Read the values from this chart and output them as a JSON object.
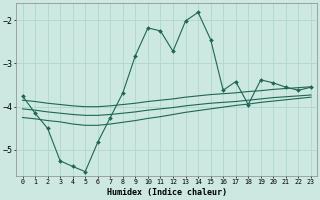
{
  "xlabel": "Humidex (Indice chaleur)",
  "bg_color": "#cce8e0",
  "grid_color": "#b0d8cc",
  "line_color": "#1e6655",
  "xlim": [
    -0.5,
    23.5
  ],
  "ylim": [
    -5.6,
    -1.6
  ],
  "yticks": [
    -5,
    -4,
    -3,
    -2
  ],
  "xtick_labels": [
    "0",
    "1",
    "2",
    "3",
    "4",
    "5",
    "6",
    "7",
    "8",
    "9",
    "10",
    "11",
    "12",
    "13",
    "14",
    "15",
    "16",
    "17",
    "18",
    "19",
    "20",
    "21",
    "22",
    "23"
  ],
  "series": [
    {
      "x": [
        0,
        1,
        2,
        3,
        4,
        5,
        6,
        7,
        8,
        9,
        10,
        11,
        12,
        13,
        14,
        15,
        16,
        17,
        18,
        19,
        20,
        21,
        22,
        23
      ],
      "y": [
        -3.85,
        -3.88,
        -3.92,
        -3.95,
        -3.98,
        -4.0,
        -4.0,
        -3.98,
        -3.95,
        -3.92,
        -3.88,
        -3.85,
        -3.82,
        -3.78,
        -3.75,
        -3.72,
        -3.7,
        -3.68,
        -3.65,
        -3.63,
        -3.6,
        -3.58,
        -3.56,
        -3.54
      ],
      "has_markers": false
    },
    {
      "x": [
        0,
        1,
        2,
        3,
        4,
        5,
        6,
        7,
        8,
        9,
        10,
        11,
        12,
        13,
        14,
        15,
        16,
        17,
        18,
        19,
        20,
        21,
        22,
        23
      ],
      "y": [
        -4.05,
        -4.08,
        -4.12,
        -4.15,
        -4.18,
        -4.2,
        -4.2,
        -4.18,
        -4.15,
        -4.12,
        -4.08,
        -4.05,
        -4.02,
        -3.98,
        -3.95,
        -3.92,
        -3.9,
        -3.88,
        -3.85,
        -3.82,
        -3.79,
        -3.77,
        -3.75,
        -3.73
      ],
      "has_markers": false
    },
    {
      "x": [
        0,
        1,
        2,
        3,
        4,
        5,
        6,
        7,
        8,
        9,
        10,
        11,
        12,
        13,
        14,
        15,
        16,
        17,
        18,
        19,
        20,
        21,
        22,
        23
      ],
      "y": [
        -4.25,
        -4.28,
        -4.32,
        -4.35,
        -4.4,
        -4.43,
        -4.43,
        -4.4,
        -4.36,
        -4.32,
        -4.27,
        -4.23,
        -4.18,
        -4.13,
        -4.09,
        -4.05,
        -4.01,
        -3.97,
        -3.94,
        -3.9,
        -3.87,
        -3.84,
        -3.81,
        -3.78
      ],
      "has_markers": false
    },
    {
      "x": [
        0,
        1,
        2,
        3,
        4,
        5,
        6,
        7,
        8,
        9,
        10,
        11,
        12,
        13,
        14,
        15,
        16,
        17,
        18,
        19,
        20,
        21,
        22,
        23
      ],
      "y": [
        -3.75,
        -4.15,
        -4.5,
        -5.25,
        -5.38,
        -5.5,
        -4.82,
        -4.25,
        -3.68,
        -2.82,
        -2.18,
        -2.25,
        -2.72,
        -2.02,
        -1.82,
        -2.45,
        -3.62,
        -3.42,
        -3.95,
        -3.38,
        -3.45,
        -3.55,
        -3.62,
        -3.55
      ],
      "has_markers": true
    }
  ]
}
